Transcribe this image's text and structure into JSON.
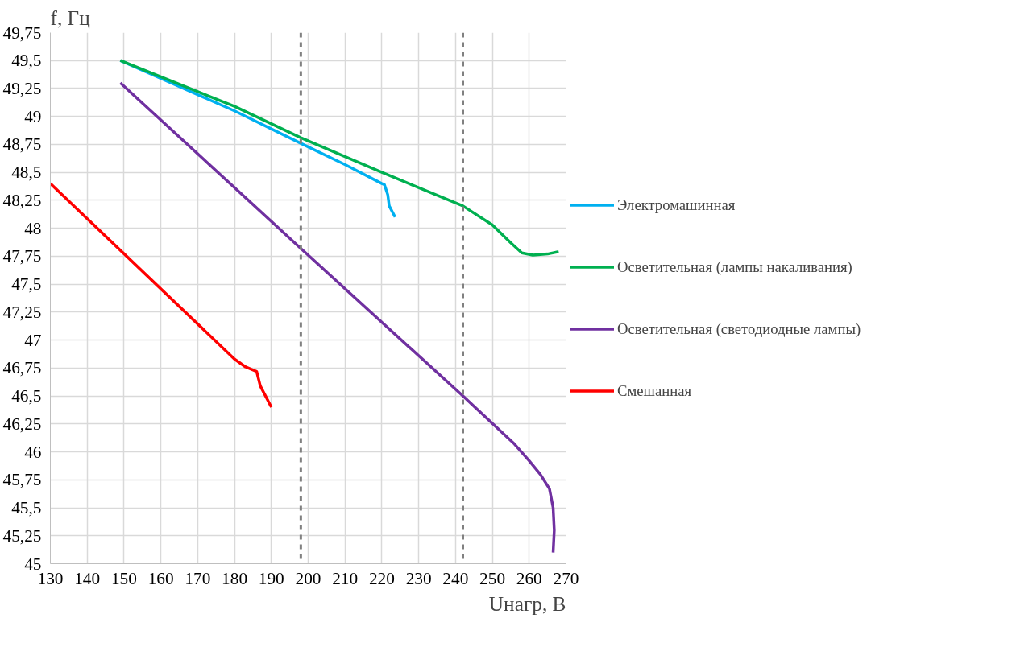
{
  "chart_data": {
    "type": "line",
    "xlabel": "Uнагр, В",
    "ylabel": "f, Гц",
    "xlim": [
      130,
      270
    ],
    "xticks": [
      130,
      140,
      150,
      160,
      170,
      180,
      190,
      200,
      210,
      220,
      230,
      240,
      250,
      260,
      270
    ],
    "ylim": [
      45,
      49.75
    ],
    "yticks": [
      {
        "value": 45,
        "label": "45"
      },
      {
        "value": 45.25,
        "label": "45,25"
      },
      {
        "value": 45.5,
        "label": "45,5"
      },
      {
        "value": 45.75,
        "label": "45,75"
      },
      {
        "value": 46,
        "label": "46"
      },
      {
        "value": 46.25,
        "label": "46,25"
      },
      {
        "value": 46.5,
        "label": "46,5"
      },
      {
        "value": 46.75,
        "label": "46,75"
      },
      {
        "value": 47,
        "label": "47"
      },
      {
        "value": 47.25,
        "label": "47,25"
      },
      {
        "value": 47.5,
        "label": "47,5"
      },
      {
        "value": 47.75,
        "label": "47,75"
      },
      {
        "value": 48,
        "label": "48"
      },
      {
        "value": 48.25,
        "label": "48,25"
      },
      {
        "value": 48.5,
        "label": "48,5"
      },
      {
        "value": 48.75,
        "label": "48,75"
      },
      {
        "value": 49,
        "label": "49"
      },
      {
        "value": 49.25,
        "label": "49,25"
      },
      {
        "value": 49.5,
        "label": "49,5"
      },
      {
        "value": 49.75,
        "label": "49,75"
      }
    ],
    "grid": true,
    "legend": "right",
    "marker": "none",
    "line_style": "solid",
    "ref_lines": [
      {
        "axis": "x",
        "value": 198,
        "color": "#808080",
        "line_style": "dashed"
      },
      {
        "axis": "x",
        "value": 242,
        "color": "#808080",
        "line_style": "dashed"
      }
    ],
    "series": [
      {
        "name": "Электромашинная",
        "color": "#00b0f0",
        "x": [
          149,
          160,
          180,
          198,
          210,
          220,
          220.7,
          221.6,
          222,
          223.6
        ],
        "values": [
          49.5,
          49.34,
          49.05,
          48.76,
          48.57,
          48.4,
          48.39,
          48.3,
          48.2,
          48.1
        ]
      },
      {
        "name": "Осветительная (лампы накаливания)",
        "color": "#00b050",
        "x": [
          149,
          180,
          198,
          220,
          242,
          250,
          255,
          258,
          261,
          265,
          268
        ],
        "values": [
          49.5,
          49.09,
          48.81,
          48.5,
          48.2,
          48.03,
          47.87,
          47.78,
          47.76,
          47.77,
          47.79
        ]
      },
      {
        "name": "Осветительная (светодиодные лампы)",
        "color": "#7030a0",
        "x": [
          149,
          198,
          242,
          256,
          260,
          263,
          265.5,
          266.5,
          266.8,
          266.5
        ],
        "values": [
          49.3,
          47.82,
          46.5,
          46.07,
          45.92,
          45.8,
          45.67,
          45.5,
          45.3,
          45.1
        ]
      },
      {
        "name": "Смешанная",
        "color": "#ff0000",
        "x": [
          130,
          180,
          183,
          186,
          187,
          190
        ],
        "values": [
          48.4,
          46.83,
          46.76,
          46.72,
          46.59,
          46.4
        ]
      }
    ]
  }
}
